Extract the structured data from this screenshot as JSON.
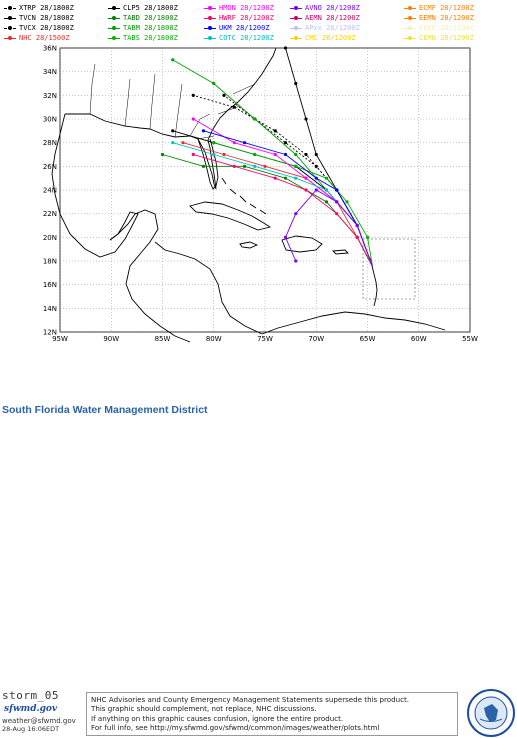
{
  "legend": [
    {
      "label": "XTRP 28/1800Z",
      "color": "#000000",
      "icon": "triangle-marker",
      "style": "dashed"
    },
    {
      "label": "TVCN 28/1800Z",
      "color": "#000000",
      "icon": "circle-marker",
      "style": "solid"
    },
    {
      "label": "TVCX 28/1800Z",
      "color": "#000000",
      "icon": "diamond-marker",
      "style": "dashed"
    },
    {
      "label": "NHC 28/1500Z",
      "color": "#e23030",
      "icon": "circle-marker",
      "style": "solid"
    },
    {
      "label": "CLP5 28/1800Z",
      "color": "#000000",
      "icon": "circle-marker",
      "style": "solid"
    },
    {
      "label": "TABD 28/1800Z",
      "color": "#008000",
      "icon": "square-marker",
      "style": "solid"
    },
    {
      "label": "TABM 28/1800Z",
      "color": "#00a000",
      "icon": "square-marker",
      "style": "solid"
    },
    {
      "label": "TABS 28/1800Z",
      "color": "#00b000",
      "icon": "diamond-marker",
      "style": "solid"
    },
    {
      "label": "HMON 28/1200Z",
      "color": "#ff00ff",
      "icon": "triangle-marker",
      "style": "solid"
    },
    {
      "label": "HWRF 28/1200Z",
      "color": "#ff0066",
      "icon": "circle-marker",
      "style": "solid"
    },
    {
      "label": "UKM 28/1200Z",
      "color": "#0000ff",
      "icon": "circle-marker",
      "style": "solid"
    },
    {
      "label": "COTC 28/1200Z",
      "color": "#00c0c0",
      "icon": "circle-marker",
      "style": "solid"
    },
    {
      "label": "AVNO 28/1200Z",
      "color": "#7b00ff",
      "icon": "circle-marker",
      "style": "solid"
    },
    {
      "label": "AEMN 28/1200Z",
      "color": "#cc0066",
      "icon": "triangle-marker",
      "style": "solid"
    },
    {
      "label": "APxx 28/1200Z",
      "color": "#c0c0ff",
      "icon": "circle-marker",
      "style": "solid"
    },
    {
      "label": "CMC 28/1200Z",
      "color": "#ffd000",
      "icon": "circle-marker",
      "style": "solid"
    },
    {
      "label": "ECMF 28/1200Z",
      "color": "#ff8000",
      "icon": "triangle-marker",
      "style": "solid"
    },
    {
      "label": "EEMN 28/1200Z",
      "color": "#ff8000",
      "icon": "square-marker",
      "style": "solid"
    },
    {
      "label": "EEEE 28/1200Z",
      "color": "#f0f0c0",
      "icon": "circle-marker",
      "style": "solid"
    },
    {
      "label": "CEMN 28/1200Z",
      "color": "#f0e040",
      "icon": "circle-marker",
      "style": "solid"
    }
  ],
  "map": {
    "lat_labels": [
      "36N",
      "34N",
      "32N",
      "30N",
      "28N",
      "26N",
      "24N",
      "22N",
      "20N",
      "18N",
      "16N",
      "14N",
      "12N"
    ],
    "lon_labels": [
      "95W",
      "90W",
      "85W",
      "80W",
      "75W",
      "70W",
      "65W",
      "60W",
      "55W"
    ],
    "lat_range": [
      12,
      36
    ],
    "lon_range": [
      -95,
      -55
    ],
    "ocean_color": "#ffffff",
    "grid": "dashed"
  },
  "footer": {
    "storm_label": "storm_05",
    "logo_text": "sfwmd.gov",
    "email": "weather@sfwmd.gov",
    "timestamp": "28-Aug 16:06EDT",
    "notice_lines": [
      "NHC Advisories and County Emergency Management Statements supersede this product.",
      "This graphic should complement, not replace, NHC discussions.",
      "If anything on this graphic causes confusion, ignore the entire product.",
      "For full info, see  http://my.sfwmd.gov/sfwmd/common/images/weather/plots.html"
    ],
    "seal_text": "SOUTH FLORIDA WATER MANAGEMENT DISTRICT",
    "agency": "South Florida Water Management District"
  }
}
